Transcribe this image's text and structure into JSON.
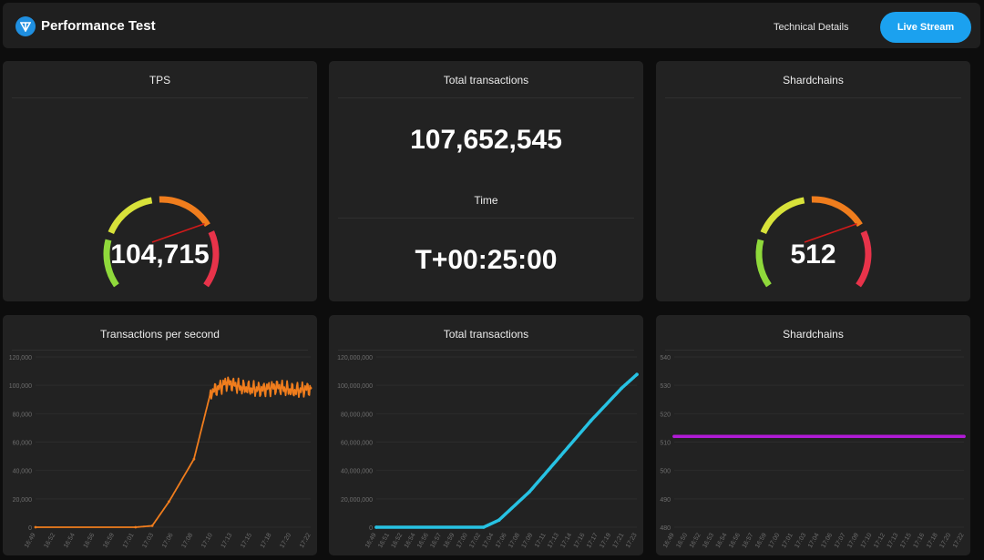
{
  "header": {
    "title": "Performance Test",
    "technical_details": "Technical Details",
    "live_stream": "Live Stream"
  },
  "colors": {
    "accent": "#1ba1ef",
    "orange": "#f07d1d",
    "cyan": "#27c2e3",
    "purple": "#b11bd6",
    "gauge_green": "#8fd93b",
    "gauge_yellow": "#d8e23a",
    "gauge_orange": "#f07d1d",
    "gauge_red": "#e8334a"
  },
  "stats": {
    "tps": {
      "title": "TPS",
      "value": "104,715",
      "gauge_level": 0.72
    },
    "total": {
      "title": "Total transactions",
      "value": "107,652,545",
      "time_label": "Time",
      "time_value": "T+00:25:00"
    },
    "shards": {
      "title": "Shardchains",
      "value": "512",
      "gauge_level": 0.72
    }
  },
  "charts": {
    "tps": {
      "title": "Transactions per second"
    },
    "total": {
      "title": "Total transactions"
    },
    "shards": {
      "title": "Shardchains"
    }
  },
  "chart_data": [
    {
      "type": "line",
      "title": "Transactions per second",
      "ylim": [
        0,
        120000
      ],
      "yticks": [
        "120,000",
        "100,000",
        "80,000",
        "60,000",
        "40,000",
        "20,000",
        "0"
      ],
      "xticks": [
        "16:49",
        "16:52",
        "16:54",
        "16:56",
        "16:59",
        "17:01",
        "17:03",
        "17:06",
        "17:08",
        "17:10",
        "17:13",
        "17:15",
        "17:18",
        "17:20",
        "17:22"
      ],
      "x": [
        "16:49",
        "17:01",
        "17:03",
        "17:05",
        "17:08",
        "17:10",
        "17:12",
        "17:14",
        "17:16",
        "17:18",
        "17:20",
        "17:22"
      ],
      "values": [
        0,
        0,
        1000,
        18000,
        48000,
        95000,
        102000,
        98000,
        97000,
        99000,
        96000,
        98000
      ],
      "color": "#f07d1d"
    },
    {
      "type": "line",
      "title": "Total transactions",
      "ylim": [
        0,
        120000000
      ],
      "yticks": [
        "120,000,000",
        "100,000,000",
        "80,000,000",
        "60,000,000",
        "40,000,000",
        "20,000,000",
        "0"
      ],
      "xticks": [
        "16:49",
        "16:51",
        "16:52",
        "16:54",
        "16:56",
        "16:57",
        "16:59",
        "17:00",
        "17:02",
        "17:04",
        "17:06",
        "17:08",
        "17:09",
        "17:11",
        "17:13",
        "17:14",
        "17:16",
        "17:17",
        "17:19",
        "17:21",
        "17:23"
      ],
      "x": [
        "16:49",
        "17:03",
        "17:05",
        "17:09",
        "17:13",
        "17:17",
        "17:21",
        "17:23"
      ],
      "values": [
        0,
        0,
        5000000,
        25000000,
        50000000,
        75000000,
        98000000,
        107652545
      ],
      "color": "#27c2e3"
    },
    {
      "type": "line",
      "title": "Shardchains",
      "ylim": [
        480,
        540
      ],
      "yticks": [
        "540",
        "530",
        "520",
        "510",
        "500",
        "490",
        "480"
      ],
      "xticks": [
        "16:49",
        "16:50",
        "16:52",
        "16:53",
        "16:54",
        "16:56",
        "16:57",
        "16:59",
        "17:00",
        "17:01",
        "17:03",
        "17:04",
        "17:06",
        "17:07",
        "17:09",
        "17:10",
        "17:12",
        "17:13",
        "17:15",
        "17:16",
        "17:18",
        "17:20",
        "17:22"
      ],
      "x": [
        "16:49",
        "17:22"
      ],
      "values": [
        512,
        512
      ],
      "color": "#b11bd6"
    }
  ]
}
